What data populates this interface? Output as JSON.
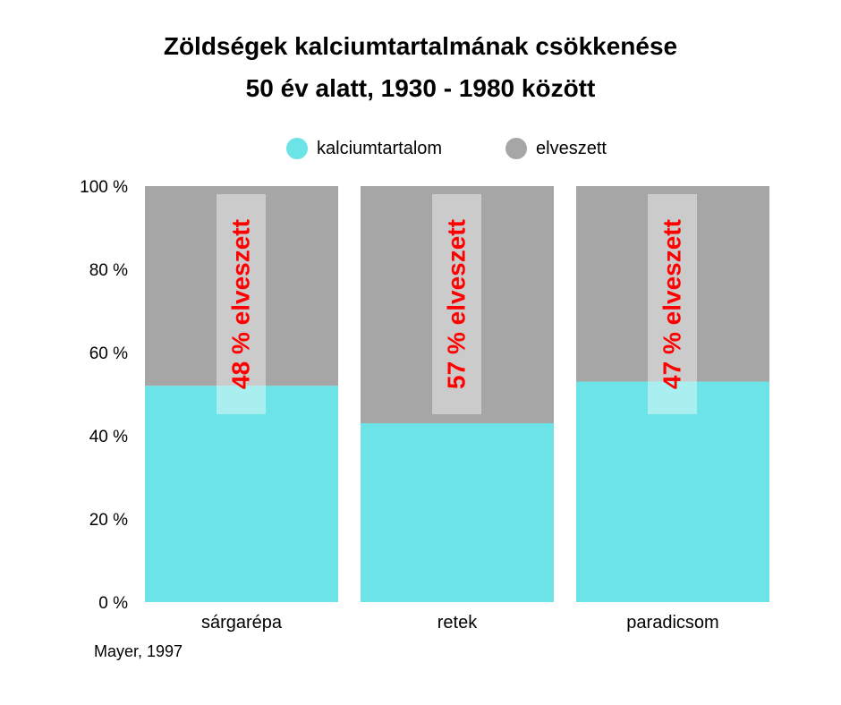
{
  "chart_data": {
    "type": "bar",
    "stacked": true,
    "title_line1": "Zöldségek kalciumtartalmának csökkenése",
    "title_line2": "50 év alatt, 1930 - 1980 között",
    "categories": [
      "sárgarépa",
      "retek",
      "paradicsom"
    ],
    "series": [
      {
        "name": "kalciumtartalom",
        "color": "#6ce3e6",
        "values": [
          52,
          43,
          53
        ]
      },
      {
        "name": "elveszett",
        "color": "#a6a6a6",
        "values": [
          48,
          57,
          47
        ]
      }
    ],
    "annotations": [
      "48 % elveszett",
      "57 % elveszett",
      "47 % elveszett"
    ],
    "annotation_color": "#ff0000",
    "y_ticks": [
      "0 %",
      "20 %",
      "40 %",
      "60 %",
      "80 %",
      "100 %"
    ],
    "ylim": [
      0,
      100
    ],
    "legend_position": "top",
    "source": "Mayer, 1997"
  }
}
